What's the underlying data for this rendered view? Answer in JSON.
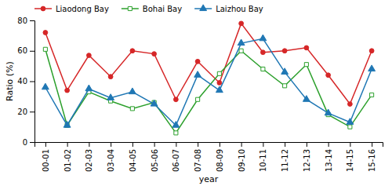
{
  "chart_data": {
    "type": "line",
    "categories": [
      "00-01",
      "01-02",
      "02-03",
      "03-04",
      "04-05",
      "05-06",
      "06-07",
      "07-08",
      "08-09",
      "09-10",
      "10-11",
      "11-12",
      "12-13",
      "13-14",
      "14-15",
      "15-16"
    ],
    "series": [
      {
        "name": "Liaodong Bay",
        "color": "#d62728",
        "marker": "circle",
        "values": [
          72,
          34,
          57,
          43,
          60,
          58,
          28,
          53,
          39,
          78,
          59,
          60,
          62,
          44,
          25,
          60
        ]
      },
      {
        "name": "Bohai Bay",
        "color": "#2ca02c",
        "marker": "square",
        "values": [
          61,
          11,
          33,
          27,
          22,
          26,
          6,
          28,
          45,
          60,
          48,
          37,
          51,
          18,
          10,
          31
        ]
      },
      {
        "name": "Laizhou Bay",
        "color": "#1f77b4",
        "marker": "triangle",
        "values": [
          36,
          11,
          35,
          29,
          33,
          25,
          11,
          44,
          34,
          65,
          68,
          46,
          28,
          19,
          13,
          48
        ]
      }
    ],
    "xlabel": "year",
    "ylabel": "Ratio (%)",
    "ylim": [
      0,
      80
    ],
    "yticks": [
      0,
      20,
      40,
      60,
      80
    ],
    "grid": false,
    "legend": "upper left"
  }
}
